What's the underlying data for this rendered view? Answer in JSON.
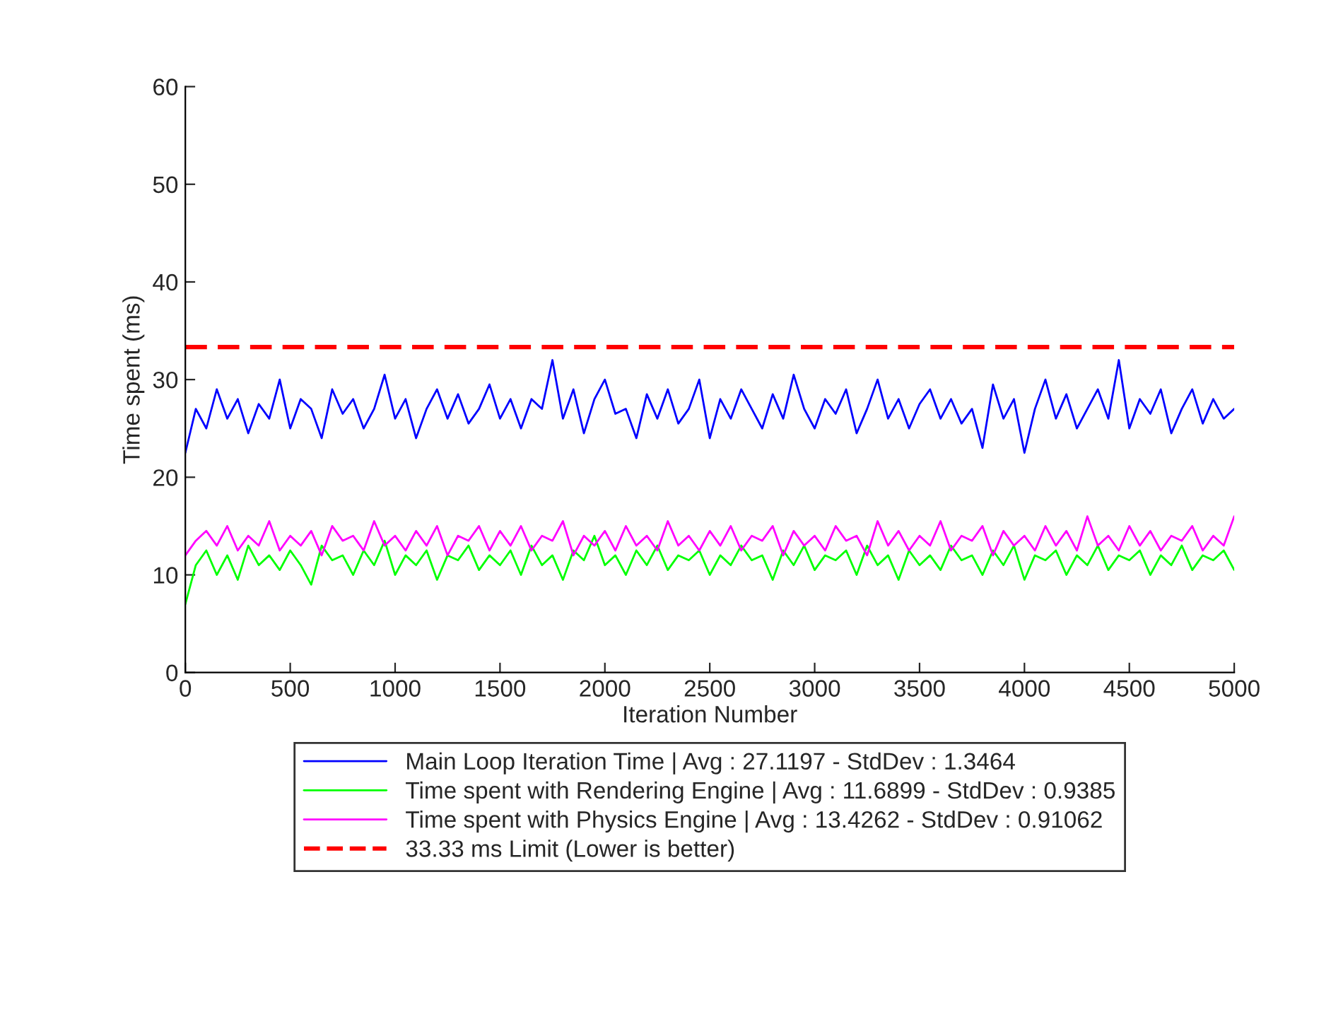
{
  "chart_data": {
    "type": "line",
    "xlabel": "Iteration Number",
    "ylabel": "Time spent (ms)",
    "x": [
      0,
      50,
      100,
      150,
      200,
      250,
      300,
      350,
      400,
      450,
      500,
      550,
      600,
      650,
      700,
      750,
      800,
      850,
      900,
      950,
      1000,
      1050,
      1100,
      1150,
      1200,
      1250,
      1300,
      1350,
      1400,
      1450,
      1500,
      1550,
      1600,
      1650,
      1700,
      1750,
      1800,
      1850,
      1900,
      1950,
      2000,
      2050,
      2100,
      2150,
      2200,
      2250,
      2300,
      2350,
      2400,
      2450,
      2500,
      2550,
      2600,
      2650,
      2700,
      2750,
      2800,
      2850,
      2900,
      2950,
      3000,
      3050,
      3100,
      3150,
      3200,
      3250,
      3300,
      3350,
      3400,
      3450,
      3500,
      3550,
      3600,
      3650,
      3700,
      3750,
      3800,
      3850,
      3900,
      3950,
      4000,
      4050,
      4100,
      4150,
      4200,
      4250,
      4300,
      4350,
      4400,
      4450,
      4500,
      4550,
      4600,
      4650,
      4700,
      4750,
      4800,
      4850,
      4900,
      4950,
      5000
    ],
    "series": [
      {
        "name": "Main Loop Iteration Time | Avg : 27.1197 - StdDev : 1.3464",
        "color": "#0000ff",
        "values": [
          22.5,
          27,
          25,
          29,
          26,
          28,
          24.5,
          27.5,
          26,
          30,
          25,
          28,
          27,
          24,
          29,
          26.5,
          28,
          25,
          27,
          30.5,
          26,
          28,
          24,
          27,
          29,
          26,
          28.5,
          25.5,
          27,
          29.5,
          26,
          28,
          25,
          28,
          27,
          32,
          26,
          29,
          24.5,
          28,
          30,
          26.5,
          27,
          24,
          28.5,
          26,
          29,
          25.5,
          27,
          30,
          24,
          28,
          26,
          29,
          27,
          25,
          28.5,
          26,
          30.5,
          27,
          25,
          28,
          26.5,
          29,
          24.5,
          27,
          30,
          26,
          28,
          25,
          27.5,
          29,
          26,
          28,
          25.5,
          27,
          23,
          29.5,
          26,
          28,
          22.5,
          27,
          30,
          26,
          28.5,
          25,
          27,
          29,
          26,
          32,
          25,
          28,
          26.5,
          29,
          24.5,
          27,
          29,
          25.5,
          28,
          26,
          27
        ]
      },
      {
        "name": "Time spent with Rendering Engine | Avg : 11.6899 - StdDev : 0.9385",
        "color": "#00ff00",
        "values": [
          7,
          11,
          12.5,
          10,
          12,
          9.5,
          13,
          11,
          12,
          10.5,
          12.5,
          11,
          9,
          13,
          11.5,
          12,
          10,
          12.5,
          11,
          13.5,
          10,
          12,
          11,
          12.5,
          9.5,
          12,
          11.5,
          13,
          10.5,
          12,
          11,
          12.5,
          10,
          13,
          11,
          12,
          9.5,
          12.5,
          11.5,
          14,
          11,
          12,
          10,
          12.5,
          11,
          13,
          10.5,
          12,
          11.5,
          12.5,
          10,
          12,
          11,
          13,
          11.5,
          12,
          9.5,
          12.5,
          11,
          13,
          10.5,
          12,
          11.5,
          12.5,
          10,
          13,
          11,
          12,
          9.5,
          12.5,
          11,
          12,
          10.5,
          13,
          11.5,
          12,
          10,
          12.5,
          11,
          13,
          9.5,
          12,
          11.5,
          12.5,
          10,
          12,
          11,
          13,
          10.5,
          12,
          11.5,
          12.5,
          10,
          12,
          11,
          13,
          10.5,
          12,
          11.5,
          12.5,
          10.5
        ]
      },
      {
        "name": "Time spent with Physics Engine | Avg : 13.4262 - StdDev : 0.91062",
        "color": "#ff00ff",
        "values": [
          12,
          13.5,
          14.5,
          13,
          15,
          12.5,
          14,
          13,
          15.5,
          12.5,
          14,
          13,
          14.5,
          12,
          15,
          13.5,
          14,
          12.5,
          15.5,
          13,
          14,
          12.5,
          14.5,
          13,
          15,
          12,
          14,
          13.5,
          15,
          12.5,
          14.5,
          13,
          15,
          12.5,
          14,
          13.5,
          15.5,
          12,
          14,
          13,
          14.5,
          12.5,
          15,
          13,
          14,
          12.5,
          15.5,
          13,
          14,
          12.5,
          14.5,
          13,
          15,
          12.5,
          14,
          13.5,
          15,
          12,
          14.5,
          13,
          14,
          12.5,
          15,
          13.5,
          14,
          12,
          15.5,
          13,
          14.5,
          12.5,
          14,
          13,
          15.5,
          12.5,
          14,
          13.5,
          15,
          12,
          14.5,
          13,
          14,
          12.5,
          15,
          13,
          14.5,
          12.5,
          16,
          13,
          14,
          12.5,
          15,
          13,
          14.5,
          12.5,
          14,
          13.5,
          15,
          12.5,
          14,
          13,
          16
        ]
      }
    ],
    "ref_lines": [
      {
        "axis": "y",
        "value": 33.33,
        "label": "33.33 ms Limit (Lower is better)",
        "color": "#ff0000",
        "line_style": "dashed"
      }
    ],
    "xlim": [
      0,
      5000
    ],
    "xticks": [
      0,
      500,
      1000,
      1500,
      2000,
      2500,
      3000,
      3500,
      4000,
      4500,
      5000
    ],
    "ylim": [
      0,
      60
    ],
    "yticks": [
      0,
      10,
      20,
      30,
      40,
      50,
      60
    ],
    "grid": false,
    "legend": "bottom",
    "line_style": "solid",
    "marker": "none"
  }
}
